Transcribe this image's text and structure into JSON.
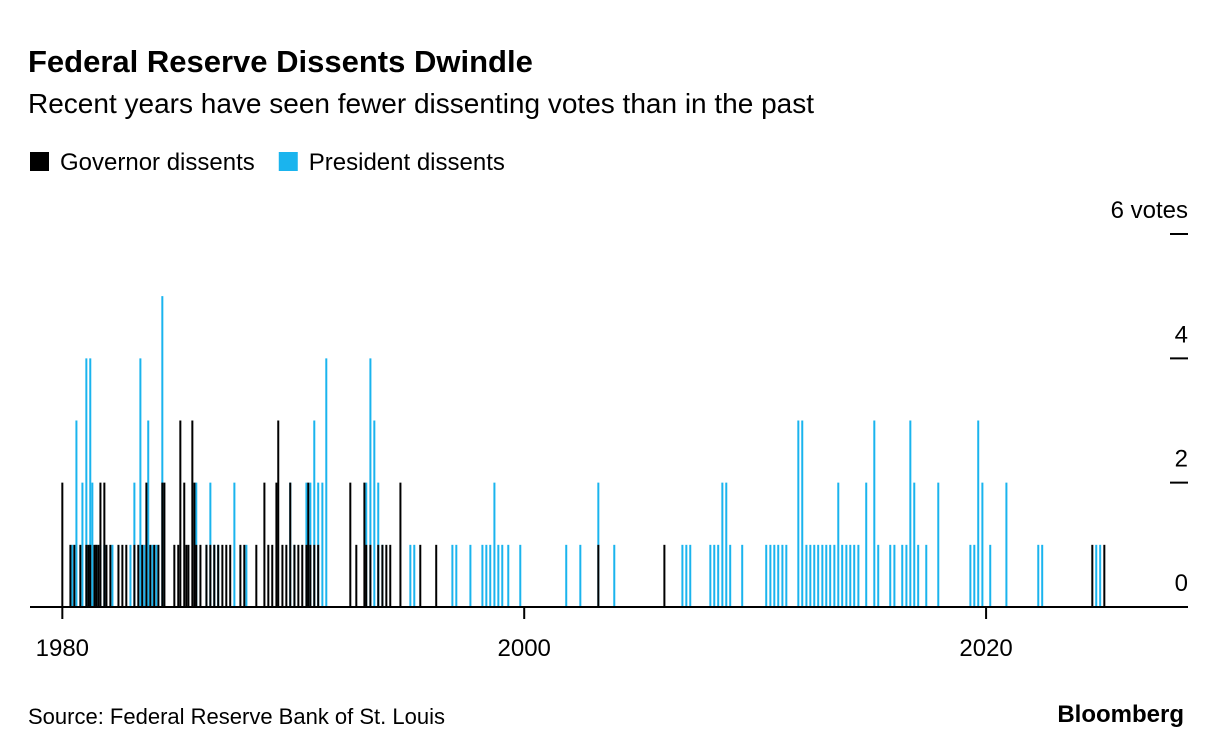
{
  "chart_data": {
    "type": "bar",
    "title": "Federal Reserve Dissents Dwindle",
    "subtitle": "Recent years have seen fewer dissenting votes than in the past",
    "source": "Source: Federal Reserve Bank of St. Louis",
    "brand": "Bloomberg",
    "xlim": [
      1978.6,
      2028.7
    ],
    "xticks": [
      1980,
      2000,
      2020
    ],
    "ylim": [
      0,
      6
    ],
    "yticks": [
      0,
      2,
      4,
      {
        "value": 6,
        "label": "6 votes"
      }
    ],
    "series": [
      {
        "name": "President dissents",
        "color": "#1ab4ee",
        "x": [
          1980.43,
          1980.61,
          1980.87,
          1981.04,
          1981.21,
          1981.3,
          1981.47,
          1981.65,
          1981.82,
          1982.17,
          1982.95,
          1983.12,
          1983.38,
          1983.55,
          1983.72,
          1983.9,
          1984.07,
          1984.33,
          1985.8,
          1986.24,
          1986.41,
          1986.58,
          1986.75,
          1987.45,
          1987.97,
          1989.87,
          1990.05,
          1990.57,
          1990.74,
          1990.91,
          1991.08,
          1991.26,
          1991.43,
          1993.16,
          1993.34,
          1993.51,
          1993.68,
          1993.86,
          1995.07,
          1995.24,
          1996.89,
          1997.06,
          1997.67,
          1998.19,
          1998.36,
          1998.53,
          1998.71,
          1998.88,
          1999.05,
          1999.31,
          1999.83,
          2001.82,
          2002.43,
          2003.21,
          2003.9,
          2006.85,
          2007.02,
          2007.19,
          2008.06,
          2008.23,
          2008.4,
          2008.58,
          2008.75,
          2008.92,
          2009.44,
          2010.48,
          2010.66,
          2010.83,
          2011.0,
          2011.18,
          2011.35,
          2011.87,
          2012.04,
          2012.22,
          2012.39,
          2012.56,
          2012.73,
          2012.91,
          2013.08,
          2013.25,
          2013.43,
          2013.6,
          2013.77,
          2013.95,
          2014.12,
          2014.29,
          2014.47,
          2014.81,
          2015.16,
          2015.33,
          2015.85,
          2016.03,
          2016.37,
          2016.55,
          2016.72,
          2016.89,
          2017.06,
          2017.41,
          2017.93,
          2019.32,
          2019.49,
          2019.66,
          2019.84,
          2020.18,
          2020.88,
          2022.26,
          2022.43,
          2024.77,
          2024.94
        ],
        "values": [
          1,
          3,
          2,
          4,
          4,
          2,
          1,
          1,
          1,
          1,
          1,
          2,
          4,
          1,
          3,
          1,
          1,
          5,
          2,
          1,
          2,
          1,
          1,
          2,
          1,
          2,
          1,
          2,
          2,
          3,
          2,
          2,
          4,
          2,
          4,
          3,
          2,
          1,
          1,
          1,
          1,
          1,
          1,
          1,
          1,
          1,
          2,
          1,
          1,
          1,
          1,
          1,
          1,
          2,
          1,
          1,
          1,
          1,
          1,
          1,
          1,
          2,
          2,
          1,
          1,
          1,
          1,
          1,
          1,
          1,
          1,
          3,
          3,
          1,
          1,
          1,
          1,
          1,
          1,
          1,
          1,
          2,
          1,
          1,
          1,
          1,
          1,
          2,
          3,
          1,
          1,
          1,
          1,
          1,
          3,
          2,
          1,
          1,
          2,
          1,
          1,
          3,
          2,
          1,
          2,
          1,
          1,
          1,
          1
        ]
      },
      {
        "name": "Governor dissents",
        "color": "#000000",
        "x": [
          1980.0,
          1980.35,
          1980.52,
          1980.78,
          1981.04,
          1981.13,
          1981.21,
          1981.39,
          1981.47,
          1981.56,
          1981.65,
          1981.82,
          1981.91,
          1982.08,
          1982.43,
          1982.6,
          1982.77,
          1983.12,
          1983.29,
          1983.46,
          1983.64,
          1983.81,
          1983.98,
          1984.16,
          1984.33,
          1984.42,
          1984.85,
          1985.02,
          1985.11,
          1985.28,
          1985.37,
          1985.46,
          1985.63,
          1985.72,
          1985.8,
          1985.98,
          1986.24,
          1986.41,
          1986.58,
          1986.75,
          1986.93,
          1987.1,
          1987.27,
          1987.71,
          1987.88,
          1988.4,
          1988.75,
          1988.92,
          1989.09,
          1989.27,
          1989.35,
          1989.53,
          1989.7,
          1989.87,
          1990.05,
          1990.22,
          1990.39,
          1990.57,
          1990.65,
          1990.74,
          1990.91,
          1991.08,
          1992.47,
          1992.73,
          1993.08,
          1993.16,
          1993.34,
          1993.68,
          1993.86,
          1994.03,
          1994.2,
          1994.64,
          1995.5,
          1996.19,
          2003.21,
          2006.07,
          2024.6,
          2025.12
        ],
        "values": [
          2,
          1,
          1,
          1,
          1,
          1,
          1,
          1,
          1,
          1,
          2,
          2,
          1,
          1,
          1,
          1,
          1,
          1,
          1,
          1,
          2,
          1,
          1,
          1,
          2,
          2,
          1,
          1,
          3,
          2,
          1,
          1,
          3,
          2,
          1,
          1,
          1,
          1,
          1,
          1,
          1,
          1,
          1,
          1,
          1,
          1,
          2,
          1,
          1,
          2,
          3,
          1,
          1,
          2,
          1,
          1,
          1,
          1,
          2,
          1,
          1,
          1,
          2,
          1,
          2,
          1,
          1,
          1,
          1,
          1,
          1,
          2,
          1,
          1,
          1,
          1,
          1,
          1
        ]
      }
    ]
  }
}
